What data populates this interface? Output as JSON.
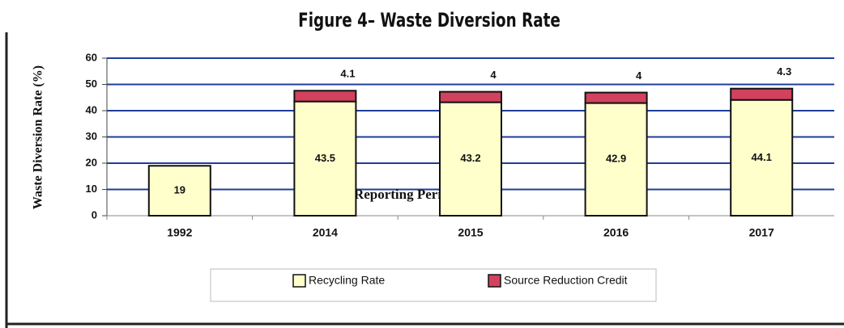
{
  "chart_data": {
    "type": "stacked_bar",
    "title": "Figure 4– Waste Diversion Rate",
    "y_label": "Waste Diversion Rate (%)",
    "x_label": "Reporting Period",
    "categories": [
      "1992",
      "2014",
      "2015",
      "2016",
      "2017"
    ],
    "series": [
      {
        "name": "Recycling Rate",
        "color": "#ffffcc",
        "values": [
          19,
          43.5,
          43.2,
          42.9,
          44.1
        ]
      },
      {
        "name": "Source Reduction Credit",
        "color": "#d2415e",
        "values": [
          null,
          4.1,
          4,
          4,
          4.3
        ]
      }
    ],
    "ylim": [
      0,
      60
    ],
    "yticks": [
      0,
      10,
      20,
      30,
      40,
      50,
      60
    ],
    "grid": true,
    "grid_color": "#1f3d99",
    "legend": "bottom"
  }
}
